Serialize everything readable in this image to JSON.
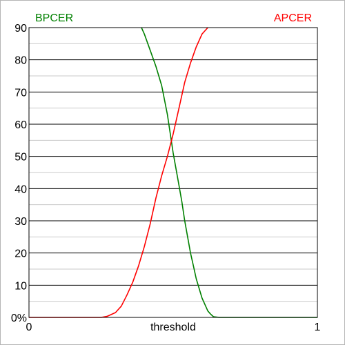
{
  "chart_data": {
    "type": "line",
    "title": "",
    "xlabel": "threshold",
    "ylabel": "",
    "xlim": [
      0,
      1
    ],
    "ylim": [
      0,
      90
    ],
    "x_tick_labels": [
      "0",
      "1"
    ],
    "y_tick_labels": [
      "0%",
      "10",
      "20",
      "30",
      "40",
      "50",
      "60",
      "70",
      "80",
      "90"
    ],
    "y_major_ticks": [
      0,
      10,
      20,
      30,
      40,
      50,
      60,
      70,
      80,
      90
    ],
    "y_minor_ticks": [
      5,
      15,
      25,
      35,
      45,
      55,
      65,
      75,
      85
    ],
    "grid": true,
    "legend_placement": "top-left and top-right labels",
    "series": [
      {
        "name": "BPCER",
        "color": "#008000",
        "x": [
          0.39,
          0.4,
          0.42,
          0.44,
          0.46,
          0.48,
          0.49,
          0.5,
          0.51,
          0.52,
          0.53,
          0.54,
          0.55,
          0.56,
          0.57,
          0.58,
          0.59,
          0.6,
          0.61,
          0.62,
          0.63,
          0.64,
          0.66,
          0.7,
          0.8,
          1.0
        ],
        "values": [
          90,
          88,
          83,
          78,
          72,
          63,
          57,
          51,
          46,
          41,
          36,
          30,
          25,
          20,
          16,
          12,
          9,
          6,
          4,
          2,
          1,
          0.2,
          0,
          0,
          0,
          0
        ]
      },
      {
        "name": "APCER",
        "color": "#ff0000",
        "x": [
          0.0,
          0.2,
          0.25,
          0.27,
          0.3,
          0.32,
          0.34,
          0.36,
          0.38,
          0.4,
          0.42,
          0.44,
          0.46,
          0.48,
          0.5,
          0.52,
          0.54,
          0.56,
          0.58,
          0.6,
          0.62
        ],
        "values": [
          0,
          0,
          0,
          0.3,
          1.5,
          3.5,
          7,
          11,
          16,
          22,
          29,
          37,
          44,
          50,
          57,
          65,
          73,
          79,
          84,
          88,
          90
        ]
      }
    ]
  }
}
